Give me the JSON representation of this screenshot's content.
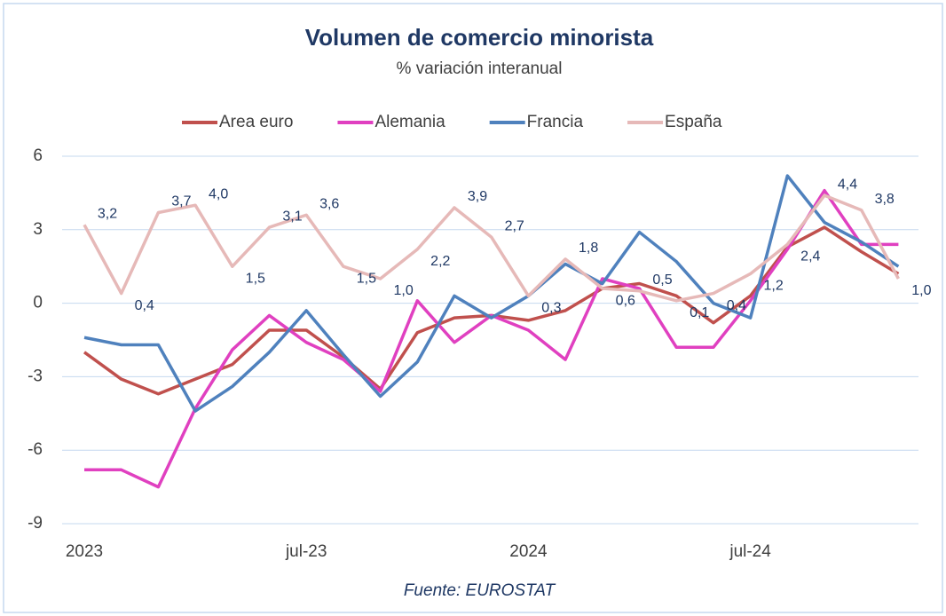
{
  "chart_data": {
    "type": "line",
    "title": "Volumen de comercio minorista",
    "subtitle": "% variación interanual",
    "source": "Fuente: EUROSTAT",
    "categories": [
      "2023",
      null,
      null,
      null,
      null,
      null,
      "jul-23",
      null,
      null,
      null,
      null,
      null,
      "2024",
      null,
      null,
      null,
      null,
      null,
      "jul-24",
      null,
      null,
      null,
      null
    ],
    "ylim": [
      -9,
      6
    ],
    "yticks": [
      -9,
      -6,
      -3,
      0,
      3,
      6
    ],
    "grid": true,
    "legend": "top",
    "series": [
      {
        "name": "Area euro",
        "color": "#c0504d",
        "values": [
          -2.0,
          -3.1,
          -3.7,
          -3.1,
          -2.5,
          -1.1,
          -1.1,
          -2.2,
          -3.5,
          -1.2,
          -0.6,
          -0.5,
          -0.7,
          -0.3,
          0.6,
          0.8,
          0.3,
          -0.8,
          0.3,
          2.3,
          3.1,
          2.1,
          1.2
        ]
      },
      {
        "name": "Alemania",
        "color": "#e040c0",
        "values": [
          -6.8,
          -6.8,
          -7.5,
          -4.3,
          -1.9,
          -0.5,
          -1.6,
          -2.3,
          -3.6,
          0.1,
          -1.6,
          -0.5,
          -1.1,
          -2.3,
          1.0,
          0.6,
          -1.8,
          -1.8,
          0.1,
          2.2,
          4.6,
          2.4,
          2.4
        ]
      },
      {
        "name": "Francia",
        "color": "#4f81bd",
        "values": [
          -1.4,
          -1.7,
          -1.7,
          -4.4,
          -3.4,
          -2.0,
          -0.3,
          -2.1,
          -3.8,
          -2.4,
          0.3,
          -0.6,
          0.3,
          1.6,
          0.8,
          2.9,
          1.7,
          0.0,
          -0.6,
          5.2,
          3.3,
          2.5,
          1.5
        ]
      },
      {
        "name": "España",
        "color": "#e6b9b8",
        "values": [
          3.2,
          0.4,
          3.7,
          4.0,
          1.5,
          3.1,
          3.6,
          1.5,
          1.0,
          2.2,
          3.9,
          2.7,
          0.3,
          1.8,
          0.6,
          0.5,
          0.1,
          0.4,
          1.2,
          2.4,
          4.4,
          3.8,
          1.0
        ],
        "value_labels": [
          "3,2",
          "0,4",
          "3,7",
          "4,0",
          "1,5",
          "3,1",
          "3,6",
          "1,5",
          "1,0",
          "2,2",
          "3,9",
          "2,7",
          "0,3",
          "1,8",
          "0,6",
          "0,5",
          "0,1",
          "0,4",
          "1,2",
          "2,4",
          "4,4",
          "3,8",
          "1,0"
        ]
      }
    ]
  }
}
